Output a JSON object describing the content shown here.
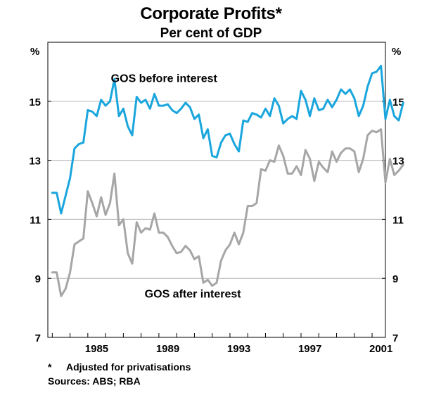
{
  "page": {
    "title": "Corporate Profits*",
    "subtitle": "Per cent of GDP",
    "unit_left": "%",
    "unit_right": "%",
    "footnote_marker": "*",
    "footnote_text": "Adjusted for privatisations",
    "sources": "Sources: ABS; RBA"
  },
  "colors": {
    "gos_before": "#1aa6dd",
    "gos_after": "#a6a6a6",
    "axis": "#000000",
    "grid": "#b3b3b3"
  },
  "chart_data": {
    "type": "line",
    "title": "Corporate Profits*",
    "subtitle": "Per cent of GDP",
    "xlabel": "",
    "ylabel": "%",
    "xlim": [
      1982.75,
      2001.75
    ],
    "ylim": [
      7,
      17
    ],
    "yticks": [
      7,
      9,
      11,
      13,
      15
    ],
    "xticks": [
      1985,
      1989,
      1993,
      1997,
      2001
    ],
    "xtick_labels": [
      "1985",
      "1989",
      "1993",
      "1997",
      "2001"
    ],
    "grid": true,
    "x_start": 1983.0,
    "x_step": 0.25,
    "series": [
      {
        "name": "GOS before interest",
        "label_text": "GOS before interest",
        "color_key": "gos_before",
        "values": [
          11.9,
          11.9,
          11.2,
          11.8,
          12.4,
          13.4,
          13.55,
          13.6,
          14.7,
          14.65,
          14.5,
          15.05,
          14.85,
          15.0,
          15.75,
          14.5,
          14.75,
          14.15,
          13.85,
          15.15,
          14.95,
          15.05,
          14.75,
          15.25,
          14.85,
          14.85,
          14.9,
          14.7,
          14.6,
          14.75,
          14.95,
          14.8,
          14.4,
          14.55,
          13.75,
          14.05,
          13.15,
          13.1,
          13.6,
          13.85,
          13.9,
          13.55,
          13.3,
          14.35,
          14.3,
          14.6,
          14.55,
          14.45,
          14.75,
          14.5,
          15.1,
          14.85,
          14.25,
          14.4,
          14.5,
          14.4,
          15.35,
          15.05,
          14.5,
          15.1,
          14.7,
          14.75,
          15.05,
          14.8,
          15.05,
          15.4,
          15.25,
          15.4,
          15.1,
          14.5,
          14.85,
          15.5,
          15.95,
          16.0,
          16.2,
          14.4,
          15.05,
          14.5,
          14.35,
          14.95
        ]
      },
      {
        "name": "GOS after interest",
        "label_text": "GOS after interest",
        "color_key": "gos_after",
        "values": [
          9.2,
          9.2,
          8.4,
          8.65,
          9.2,
          10.15,
          10.25,
          10.35,
          11.95,
          11.55,
          11.1,
          11.75,
          11.15,
          11.55,
          12.55,
          10.8,
          11.0,
          9.85,
          9.5,
          10.9,
          10.55,
          10.7,
          10.65,
          11.2,
          10.55,
          10.55,
          10.4,
          10.1,
          9.85,
          9.9,
          10.1,
          9.95,
          9.65,
          9.75,
          8.85,
          8.95,
          8.75,
          8.85,
          9.6,
          9.95,
          10.15,
          10.55,
          10.15,
          10.55,
          11.45,
          11.45,
          11.55,
          12.7,
          12.65,
          13.0,
          12.95,
          13.5,
          13.15,
          12.55,
          12.55,
          12.8,
          12.5,
          13.35,
          13.05,
          12.3,
          12.95,
          12.75,
          12.6,
          13.3,
          12.95,
          13.25,
          13.4,
          13.4,
          13.3,
          12.6,
          13.05,
          13.85,
          14.0,
          13.95,
          14.05,
          12.25,
          13.05,
          12.5,
          12.65,
          12.85
        ]
      }
    ]
  }
}
